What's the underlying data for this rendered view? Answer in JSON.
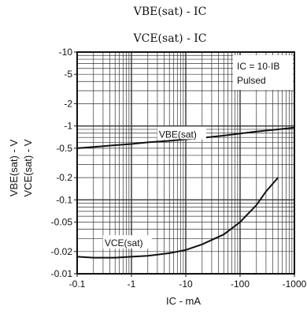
{
  "chart_data": {
    "type": "line",
    "title_lines": [
      "VBE(sat) - IC",
      "VCE(sat) - IC"
    ],
    "x_scale": "log",
    "y_scale": "log",
    "xlim": [
      0.1,
      1000
    ],
    "ylim": [
      0.01,
      10
    ],
    "x_ticks": [
      {
        "value": 0.1,
        "label": "-0.1"
      },
      {
        "value": 1,
        "label": "-1"
      },
      {
        "value": 10,
        "label": "-10"
      },
      {
        "value": 100,
        "label": "-100"
      },
      {
        "value": 1000,
        "label": "-1000"
      }
    ],
    "y_ticks": [
      {
        "value": 10,
        "label": "-10"
      },
      {
        "value": 5,
        "label": "-5"
      },
      {
        "value": 2,
        "label": "-2"
      },
      {
        "value": 1,
        "label": "-1"
      },
      {
        "value": 0.5,
        "label": "-0.5"
      },
      {
        "value": 0.2,
        "label": "-0.2"
      },
      {
        "value": 0.1,
        "label": "-0.1"
      },
      {
        "value": 0.05,
        "label": "-0.05"
      },
      {
        "value": 0.02,
        "label": "-0.02"
      },
      {
        "value": 0.01,
        "label": "-0.01"
      }
    ],
    "xlabel": "IC - mA",
    "ylabel_lines": [
      "VBE(sat) - V",
      "VCE(sat) - V"
    ],
    "annotation_lines": [
      "IC = 10·IB",
      "Pulsed"
    ],
    "grid": true,
    "series": [
      {
        "name": "VBE(sat)",
        "x": [
          0.1,
          0.2,
          0.5,
          1,
          2,
          5,
          10,
          20,
          50,
          100,
          200,
          500,
          1000
        ],
        "y": [
          0.5,
          0.52,
          0.55,
          0.57,
          0.6,
          0.63,
          0.66,
          0.69,
          0.74,
          0.79,
          0.84,
          0.9,
          0.95
        ]
      },
      {
        "name": "VCE(sat)",
        "x": [
          0.1,
          0.2,
          0.5,
          1,
          2,
          5,
          10,
          20,
          50,
          100,
          200,
          300,
          500
        ],
        "y": [
          0.017,
          0.0165,
          0.0165,
          0.017,
          0.0175,
          0.019,
          0.021,
          0.025,
          0.034,
          0.05,
          0.085,
          0.13,
          0.2
        ]
      }
    ]
  }
}
